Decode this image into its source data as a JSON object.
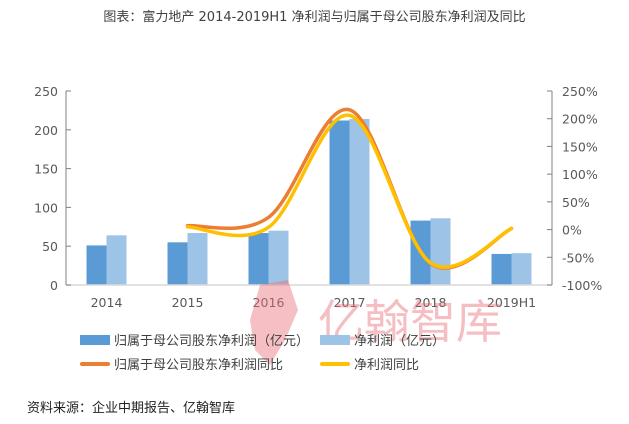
{
  "title": "图表：富力地产 2014-2019H1 净利润与归属于母公司股东净利润及同比",
  "source": "资料来源：企业中期报告、亿翰智库",
  "watermark": {
    "text": "亿翰智库",
    "color": "#E8707A"
  },
  "legend": {
    "items": [
      {
        "label": "归属于母公司股东净利润（亿元）",
        "type": "bar",
        "color": "#5B9BD5"
      },
      {
        "label": "净利润（亿元）",
        "type": "bar",
        "color": "#9DC3E6"
      },
      {
        "label": "归属于母公司股东净利润同比",
        "type": "line",
        "color": "#ED7D31"
      },
      {
        "label": "净利润同比",
        "type": "line",
        "color": "#FFC000"
      }
    ]
  },
  "chart_data": {
    "type": "bar",
    "title": "图表：富力地产 2014-2019H1 净利润与归属于母公司股东净利润及同比",
    "categories": [
      "2014",
      "2015",
      "2016",
      "2017",
      "2018",
      "2019H1"
    ],
    "series": [
      {
        "name": "归属于母公司股东净利润（亿元）",
        "type": "bar",
        "axis": "left",
        "color": "#5B9BD5",
        "values": [
          51,
          55,
          67,
          212,
          83,
          40
        ]
      },
      {
        "name": "净利润（亿元）",
        "type": "bar",
        "axis": "left",
        "color": "#9DC3E6",
        "values": [
          64,
          67,
          70,
          214,
          86,
          41
        ]
      },
      {
        "name": "归属于母公司股东净利润同比",
        "type": "line",
        "axis": "right",
        "color": "#ED7D31",
        "values": [
          null,
          7,
          22,
          216,
          -61,
          2
        ]
      },
      {
        "name": "净利润同比",
        "type": "line",
        "axis": "right",
        "color": "#FFC000",
        "values": [
          null,
          5,
          4,
          206,
          -60,
          2
        ]
      }
    ],
    "left_axis": {
      "ylim": [
        0,
        250
      ],
      "ticks": [
        "0",
        "50",
        "100",
        "150",
        "200",
        "250"
      ]
    },
    "right_axis": {
      "ylim": [
        -100,
        250
      ],
      "ticks": [
        "-100%",
        "-50%",
        "0%",
        "50%",
        "100%",
        "150%",
        "200%",
        "250%"
      ]
    },
    "xlabel": "",
    "ylabel": "",
    "grid": false,
    "legend_position": "bottom"
  }
}
